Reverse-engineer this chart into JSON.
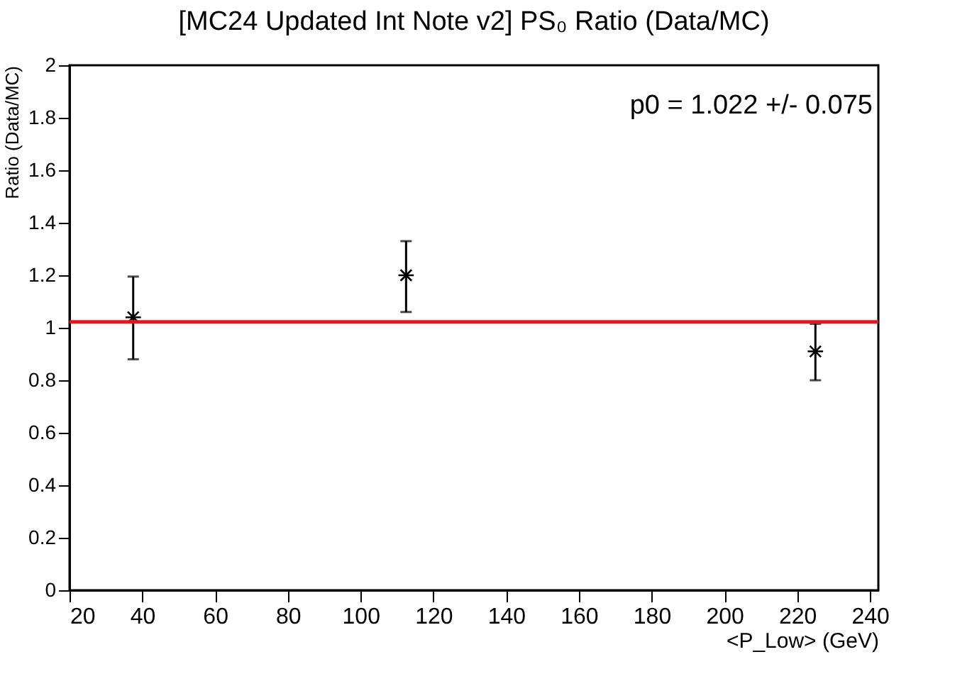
{
  "chart_data": {
    "type": "scatter",
    "title": "[MC24 Updated Int Note v2] PS₀ Ratio (Data/MC)",
    "xlabel": "<P_Low> (GeV)",
    "ylabel": "Ratio (Data/MC)",
    "x": [
      37.5,
      112.5,
      225
    ],
    "series": [
      {
        "color": "#000000",
        "values": [
          1.04,
          1.2,
          0.91
        ],
        "errors": [
          [
            0.88,
            1.195
          ],
          [
            1.06,
            1.33
          ],
          [
            0.8,
            1.015
          ]
        ]
      }
    ],
    "marker": "cross",
    "ref_lines": [
      {
        "axis": "y",
        "value": 1.022,
        "color": "#e8141b",
        "line_style": "solid"
      }
    ],
    "annotations": [
      "p0 = 1.022 +/- 0.075"
    ],
    "xlim": [
      20,
      242.3
    ],
    "ylim": [
      0,
      2
    ],
    "xticks": [
      20,
      40,
      60,
      80,
      100,
      120,
      140,
      160,
      180,
      200,
      220,
      240
    ],
    "yticks": [
      0,
      0.2,
      0.4,
      0.6,
      0.8,
      1,
      1.2,
      1.4,
      1.6,
      1.8,
      2
    ],
    "grid": false
  }
}
